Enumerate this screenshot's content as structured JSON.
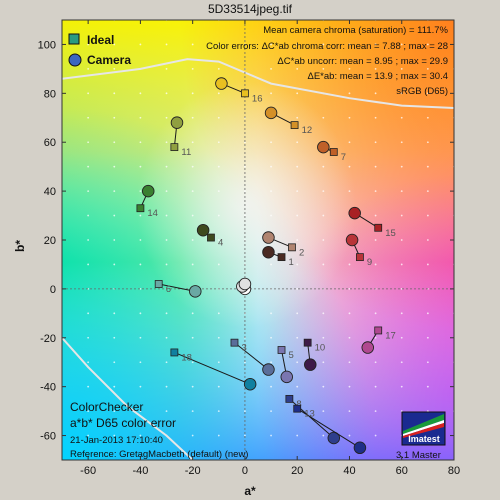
{
  "figure": {
    "title": "5D33514jpeg.tif",
    "info_lines": [
      "Mean camera chroma (saturation) = 111.7%",
      "Color errors: ΔC*ab chroma corr:  mean = 7.88 ;  max = 28",
      "ΔC*ab uncorr:  mean = 8.95 ;  max = 29.9",
      "ΔE*ab:  mean = 13.9 ;  max = 30.4",
      "sRGB (D65)"
    ],
    "bottom_left": {
      "line1": "ColorChecker",
      "line2": "a*b* D65 color error",
      "date": "21-Jan-2013 17:10:40",
      "reference": "Reference: GretagMacbeth (default) (new)"
    },
    "logo_text": "Imatest",
    "version_text": "3.1  Master"
  },
  "chart_data": {
    "type": "scatter",
    "xlabel": "a*",
    "ylabel": "b*",
    "xlim": [
      -70,
      80
    ],
    "ylim": [
      -70,
      110
    ],
    "xticks": [
      -60,
      -40,
      -20,
      0,
      20,
      40,
      60,
      80
    ],
    "yticks": [
      -60,
      -40,
      -20,
      0,
      20,
      40,
      60,
      80,
      100
    ],
    "xtick_labels": [
      "-60",
      "-40",
      "-20",
      "0",
      "20",
      "40",
      "60",
      "80"
    ],
    "ytick_labels": [
      "-60",
      "-40",
      "-20",
      "0",
      "20",
      "40",
      "60",
      "80",
      "100"
    ],
    "legend": {
      "placement": "top-left",
      "entries": [
        {
          "label": "Ideal",
          "marker": "square"
        },
        {
          "label": "Camera",
          "marker": "circle"
        }
      ]
    },
    "patches": [
      {
        "label": "1",
        "ideal": [
          14,
          13
        ],
        "camera": [
          9,
          15
        ],
        "color": "#4a2a22"
      },
      {
        "label": "2",
        "ideal": [
          18,
          17
        ],
        "camera": [
          9,
          21
        ],
        "color": "#b08470"
      },
      {
        "label": "3",
        "ideal": [
          -4,
          -22
        ],
        "camera": [
          9,
          -33
        ],
        "color": "#5a6e9a"
      },
      {
        "label": "4",
        "ideal": [
          -13,
          21
        ],
        "camera": [
          -16,
          24
        ],
        "color": "#3e4a1e"
      },
      {
        "label": "5",
        "ideal": [
          14,
          -25
        ],
        "camera": [
          16,
          -36
        ],
        "color": "#7a76b0"
      },
      {
        "label": "6",
        "ideal": [
          -33,
          2
        ],
        "camera": [
          -19,
          -1
        ],
        "color": "#6aa8a4"
      },
      {
        "label": "7",
        "ideal": [
          34,
          56
        ],
        "camera": [
          30,
          58
        ],
        "color": "#c06028"
      },
      {
        "label": "8",
        "ideal": [
          17,
          -45
        ],
        "camera": [
          34,
          -61
        ],
        "color": "#2e3e8c"
      },
      {
        "label": "9",
        "ideal": [
          44,
          13
        ],
        "camera": [
          41,
          20
        ],
        "color": "#b83438"
      },
      {
        "label": "10",
        "ideal": [
          24,
          -22
        ],
        "camera": [
          25,
          -31
        ],
        "color": "#3e1a48"
      },
      {
        "label": "11",
        "ideal": [
          -27,
          58
        ],
        "camera": [
          -26,
          68
        ],
        "color": "#90a040"
      },
      {
        "label": "12",
        "ideal": [
          19,
          67
        ],
        "camera": [
          10,
          72
        ],
        "color": "#d49028"
      },
      {
        "label": "13",
        "ideal": [
          20,
          -49
        ],
        "camera": [
          44,
          -65
        ],
        "color": "#1e2e88"
      },
      {
        "label": "14",
        "ideal": [
          -40,
          33
        ],
        "camera": [
          -37,
          40
        ],
        "color": "#3a8030"
      },
      {
        "label": "15",
        "ideal": [
          51,
          25
        ],
        "camera": [
          42,
          31
        ],
        "color": "#a82024"
      },
      {
        "label": "16",
        "ideal": [
          0,
          80
        ],
        "camera": [
          -9,
          84
        ],
        "color": "#e8c020"
      },
      {
        "label": "17",
        "ideal": [
          51,
          -17
        ],
        "camera": [
          47,
          -24
        ],
        "color": "#b04890"
      },
      {
        "label": "18",
        "ideal": [
          -27,
          -26
        ],
        "camera": [
          2,
          -39
        ],
        "color": "#1080a0"
      }
    ],
    "neutral_points": [
      [
        0,
        0
      ],
      [
        -1,
        1
      ],
      [
        0,
        2
      ]
    ]
  },
  "colors": {
    "plot_border": "#333333",
    "grid_dots": "#ffffff",
    "gamut_line": "#e6e6e6"
  }
}
